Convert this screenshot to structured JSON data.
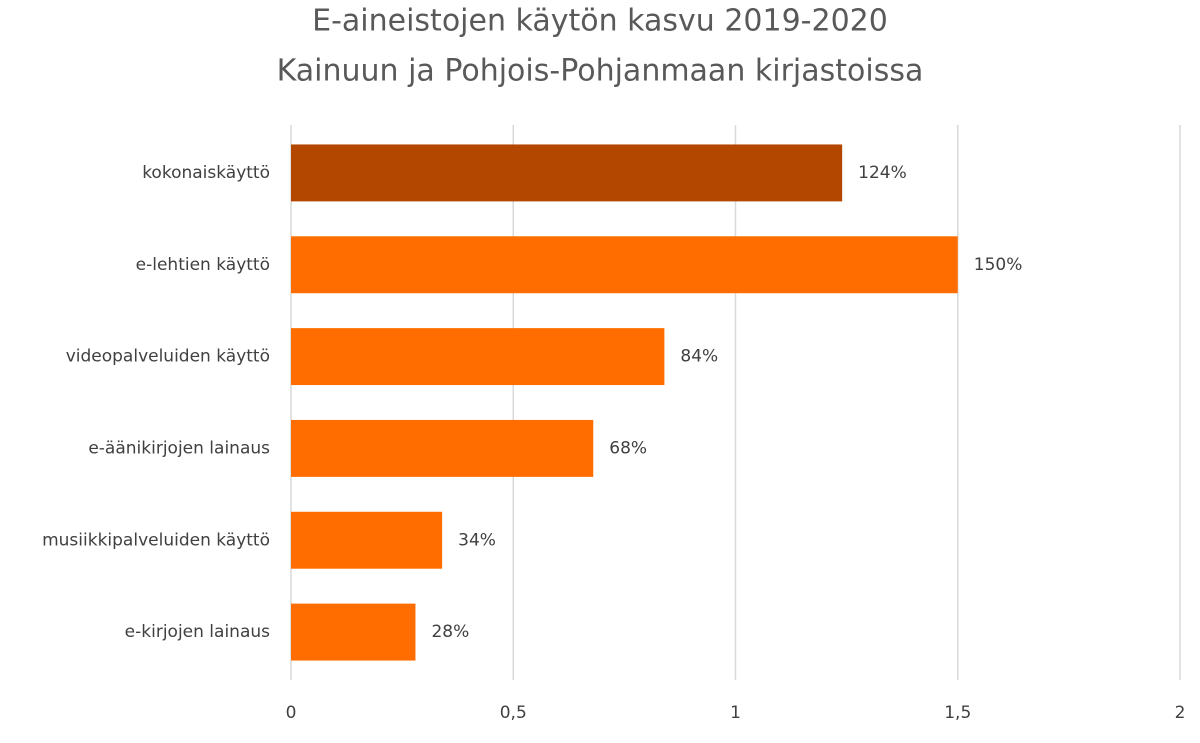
{
  "chart_data": {
    "type": "barh",
    "title": "E-aineistojen käytön kasvu 2019-2020",
    "subtitle": "Kainuun ja Pohjois-Pohjanmaan kirjastoissa",
    "categories": [
      "kokonaiskäyttö",
      "e-lehtien käyttö",
      "videopalveluiden käyttö",
      "e-äänikirjojen lainaus",
      "musiikkipalveluiden käyttö",
      "e-kirjojen lainaus"
    ],
    "values": [
      1.24,
      1.5,
      0.84,
      0.68,
      0.34,
      0.28
    ],
    "value_labels": [
      "124%",
      "150%",
      "84%",
      "68%",
      "34%",
      "28%"
    ],
    "colors": [
      "#b34700",
      "#ff6d00",
      "#ff6d00",
      "#ff6d00",
      "#ff6d00",
      "#ff6d00"
    ],
    "xlim": [
      0,
      2
    ],
    "xticks": [
      0,
      {
        "value": 0.5,
        "label": "0,5"
      },
      1,
      {
        "value": 1.5,
        "label": "1,5"
      },
      2
    ],
    "grid": true
  }
}
